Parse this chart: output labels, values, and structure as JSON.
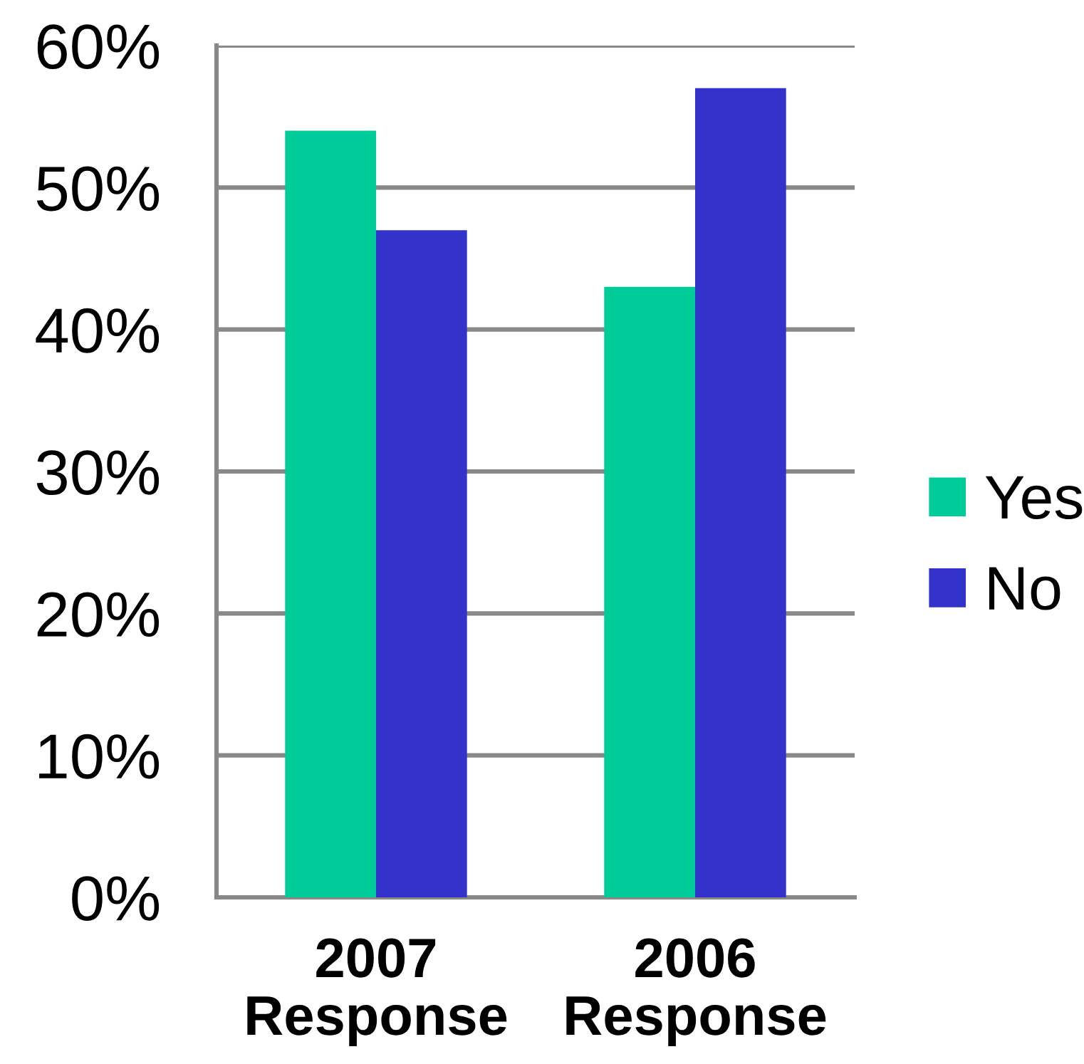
{
  "chart_data": {
    "type": "bar",
    "categories": [
      "2007\nResponse",
      "2006\nResponse"
    ],
    "series": [
      {
        "name": "Yes",
        "color": "#00cc99",
        "values": [
          54,
          43
        ]
      },
      {
        "name": "No",
        "color": "#3333cc",
        "values": [
          47,
          57
        ]
      }
    ],
    "ylim": [
      0,
      60
    ],
    "yticks": [
      {
        "value": 0,
        "label": "0%"
      },
      {
        "value": 10,
        "label": "10%"
      },
      {
        "value": 20,
        "label": "20%"
      },
      {
        "value": 30,
        "label": "30%"
      },
      {
        "value": 40,
        "label": "40%"
      },
      {
        "value": 50,
        "label": "50%"
      },
      {
        "value": 60,
        "label": "60%"
      }
    ],
    "grid": "y",
    "legend": "right"
  }
}
